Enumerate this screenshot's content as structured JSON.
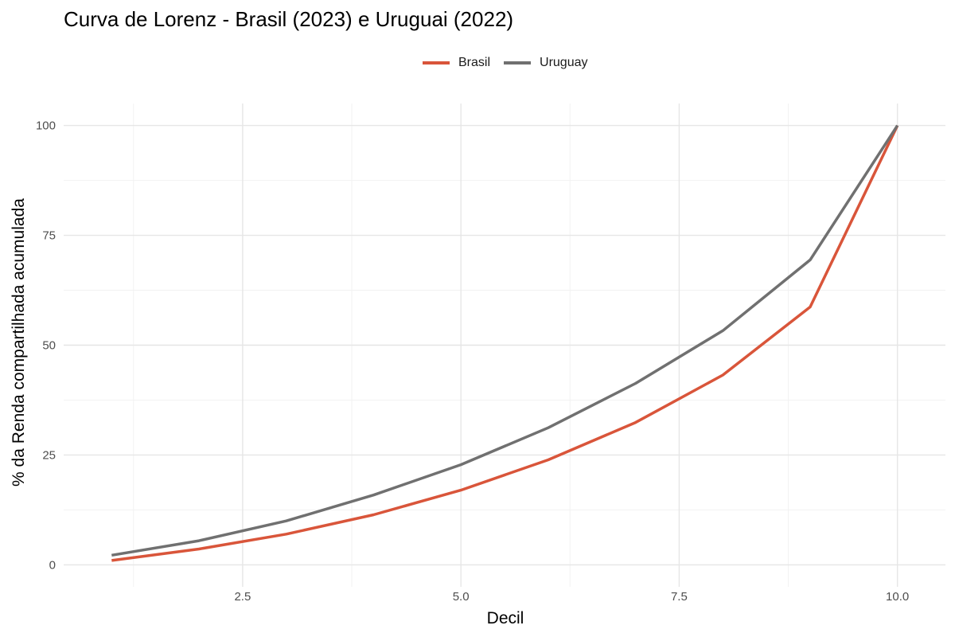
{
  "chart_data": {
    "type": "line",
    "title": "Curva de Lorenz - Brasil (2023) e Uruguai (2022)",
    "xlabel": "Decil",
    "ylabel": "% da Renda compartilhada acumulada",
    "xlim": [
      0.45,
      10.55
    ],
    "ylim": [
      -5,
      105
    ],
    "x_ticks": [
      2.5,
      5.0,
      7.5,
      10.0
    ],
    "x_tick_labels": [
      "2.5",
      "5.0",
      "7.5",
      "10.0"
    ],
    "y_ticks": [
      0,
      25,
      50,
      75,
      100
    ],
    "y_tick_labels": [
      "0",
      "25",
      "50",
      "75",
      "100"
    ],
    "grid": true,
    "legend_position": "top",
    "x": [
      1,
      2,
      3,
      4,
      5,
      6,
      7,
      8,
      9,
      10
    ],
    "series": [
      {
        "name": "Brasil",
        "color": "#d9553a",
        "values": [
          1.0,
          3.6,
          7.0,
          11.4,
          17.0,
          23.9,
          32.4,
          43.2,
          58.7,
          100.0
        ]
      },
      {
        "name": "Uruguay",
        "color": "#707070",
        "values": [
          2.2,
          5.5,
          10.0,
          15.9,
          22.8,
          31.2,
          41.3,
          53.3,
          69.4,
          100.0
        ]
      }
    ]
  }
}
